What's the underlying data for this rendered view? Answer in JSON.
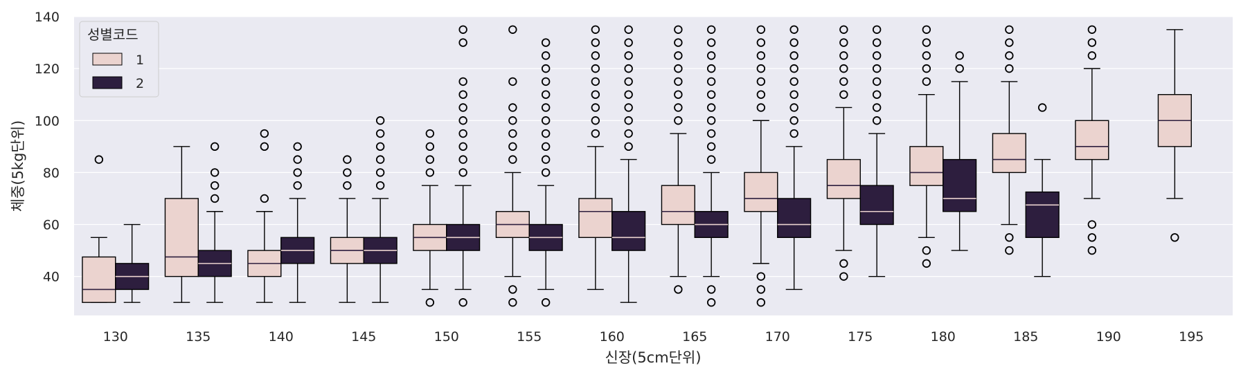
{
  "colors": {
    "background": "#eaeaf2",
    "grid": "#ffffff",
    "sex1": "#ebd3cf",
    "sex2": "#2d1e3e",
    "median_on_light": "#2d1e3e",
    "median_on_dark": "#ebd3cf",
    "whisker": "#000000"
  },
  "chart_data": {
    "type": "boxplot",
    "xlabel": "신장(5cm단위)",
    "ylabel": "체중(5kg단위)",
    "ylim": [
      25,
      140
    ],
    "yticks": [
      "40",
      "60",
      "80",
      "100",
      "120",
      "140"
    ],
    "categories": [
      "130",
      "135",
      "140",
      "145",
      "150",
      "155",
      "160",
      "165",
      "170",
      "175",
      "180",
      "185",
      "190",
      "195"
    ],
    "grid": "horizontal",
    "legend": {
      "title": "성별코드",
      "position": "top-left",
      "entries": [
        "1",
        "2"
      ]
    },
    "series": [
      {
        "name": "1",
        "boxes": [
          {
            "category": "130",
            "whislo": 30,
            "q1": 30,
            "med": 35,
            "q3": 47.5,
            "whishi": 55,
            "fliers": [
              85
            ]
          },
          {
            "category": "135",
            "whislo": 30,
            "q1": 40,
            "med": 47.5,
            "q3": 70,
            "whishi": 90,
            "fliers": []
          },
          {
            "category": "140",
            "whislo": 30,
            "q1": 40,
            "med": 45,
            "q3": 50,
            "whishi": 65,
            "fliers": [
              70,
              90,
              95
            ]
          },
          {
            "category": "145",
            "whislo": 30,
            "q1": 45,
            "med": 50,
            "q3": 55,
            "whishi": 70,
            "fliers": [
              75,
              80,
              85
            ]
          },
          {
            "category": "150",
            "whislo": 35,
            "q1": 50,
            "med": 55,
            "q3": 60,
            "whishi": 75,
            "fliers": [
              30,
              80,
              85,
              90,
              95
            ]
          },
          {
            "category": "155",
            "whislo": 40,
            "q1": 55,
            "med": 60,
            "q3": 65,
            "whishi": 80,
            "fliers": [
              30,
              35,
              85,
              90,
              95,
              100,
              105,
              115,
              135
            ]
          },
          {
            "category": "160",
            "whislo": 35,
            "q1": 55,
            "med": 65,
            "q3": 70,
            "whishi": 90,
            "fliers": [
              95,
              100,
              105,
              110,
              115,
              120,
              125,
              130,
              135
            ]
          },
          {
            "category": "165",
            "whislo": 40,
            "q1": 60,
            "med": 65,
            "q3": 75,
            "whishi": 95,
            "fliers": [
              35,
              100,
              105,
              110,
              115,
              120,
              125,
              130,
              135
            ]
          },
          {
            "category": "170",
            "whislo": 45,
            "q1": 65,
            "med": 70,
            "q3": 80,
            "whishi": 100,
            "fliers": [
              30,
              35,
              40,
              105,
              110,
              115,
              120,
              125,
              130,
              135
            ]
          },
          {
            "category": "175",
            "whislo": 50,
            "q1": 70,
            "med": 75,
            "q3": 85,
            "whishi": 105,
            "fliers": [
              40,
              45,
              110,
              115,
              120,
              125,
              130,
              135
            ]
          },
          {
            "category": "180",
            "whislo": 55,
            "q1": 75,
            "med": 80,
            "q3": 90,
            "whishi": 110,
            "fliers": [
              45,
              50,
              115,
              120,
              125,
              130,
              135
            ]
          },
          {
            "category": "185",
            "whislo": 60,
            "q1": 80,
            "med": 85,
            "q3": 95,
            "whishi": 115,
            "fliers": [
              50,
              55,
              120,
              125,
              130,
              135
            ]
          },
          {
            "category": "190",
            "whislo": 70,
            "q1": 85,
            "med": 90,
            "q3": 100,
            "whishi": 120,
            "fliers": [
              50,
              55,
              60,
              125,
              130,
              135
            ]
          },
          {
            "category": "195",
            "whislo": 70,
            "q1": 90,
            "med": 100,
            "q3": 110,
            "whishi": 135,
            "fliers": [
              55
            ]
          }
        ]
      },
      {
        "name": "2",
        "boxes": [
          {
            "category": "130",
            "whislo": 30,
            "q1": 35,
            "med": 40,
            "q3": 45,
            "whishi": 60,
            "fliers": []
          },
          {
            "category": "135",
            "whislo": 30,
            "q1": 40,
            "med": 45,
            "q3": 50,
            "whishi": 65,
            "fliers": [
              70,
              75,
              80,
              90
            ]
          },
          {
            "category": "140",
            "whislo": 30,
            "q1": 45,
            "med": 50,
            "q3": 55,
            "whishi": 70,
            "fliers": [
              75,
              80,
              85,
              90
            ]
          },
          {
            "category": "145",
            "whislo": 30,
            "q1": 45,
            "med": 50,
            "q3": 55,
            "whishi": 70,
            "fliers": [
              75,
              80,
              85,
              90,
              95,
              100
            ]
          },
          {
            "category": "150",
            "whislo": 35,
            "q1": 50,
            "med": 55,
            "q3": 60,
            "whishi": 75,
            "fliers": [
              30,
              80,
              85,
              90,
              95,
              100,
              105,
              110,
              115,
              130,
              135
            ]
          },
          {
            "category": "155",
            "whislo": 35,
            "q1": 50,
            "med": 55,
            "q3": 60,
            "whishi": 75,
            "fliers": [
              30,
              80,
              85,
              90,
              95,
              100,
              105,
              110,
              115,
              120,
              125,
              130
            ]
          },
          {
            "category": "160",
            "whislo": 30,
            "q1": 50,
            "med": 55,
            "q3": 65,
            "whishi": 85,
            "fliers": [
              90,
              95,
              100,
              105,
              110,
              115,
              120,
              125,
              130,
              135
            ]
          },
          {
            "category": "165",
            "whislo": 40,
            "q1": 55,
            "med": 60,
            "q3": 65,
            "whishi": 80,
            "fliers": [
              30,
              35,
              85,
              90,
              95,
              100,
              105,
              110,
              115,
              120,
              125,
              130,
              135
            ]
          },
          {
            "category": "170",
            "whislo": 35,
            "q1": 55,
            "med": 60,
            "q3": 70,
            "whishi": 90,
            "fliers": [
              95,
              100,
              105,
              110,
              115,
              120,
              125,
              130,
              135
            ]
          },
          {
            "category": "175",
            "whislo": 40,
            "q1": 60,
            "med": 65,
            "q3": 75,
            "whishi": 95,
            "fliers": [
              100,
              105,
              110,
              115,
              120,
              125,
              130,
              135
            ]
          },
          {
            "category": "180",
            "whislo": 50,
            "q1": 65,
            "med": 70,
            "q3": 85,
            "whishi": 115,
            "fliers": [
              120,
              125
            ]
          },
          {
            "category": "185",
            "whislo": 40,
            "q1": 55,
            "med": 67.5,
            "q3": 72.5,
            "whishi": 85,
            "fliers": [
              105
            ]
          }
        ]
      }
    ]
  }
}
